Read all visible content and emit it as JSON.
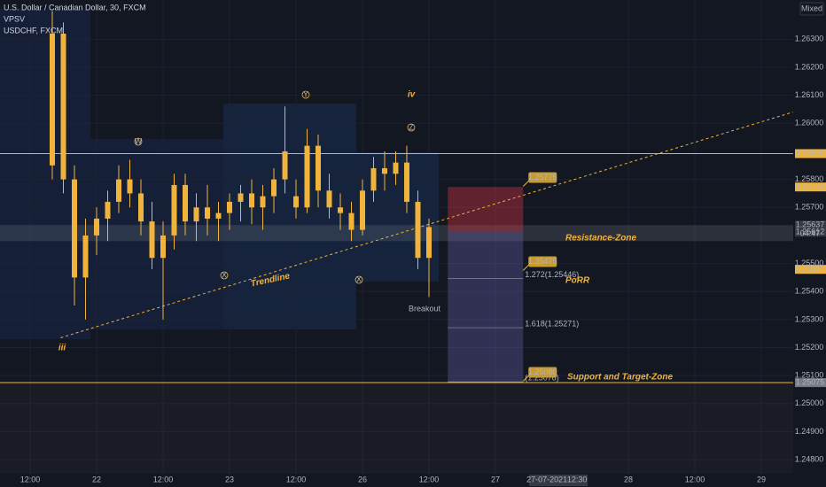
{
  "chart_data": {
    "type": "candlestick",
    "title": "U.S. Dollar / Canadian Dollar, 30, FXCM",
    "legend_lines": [
      "VPSV",
      "USDCHF, FXCM"
    ],
    "scale_mode": "Mixed",
    "color": "#f0b33c",
    "xlim": [
      -5.44,
      137.76
    ],
    "ylim": [
      1.2475,
      1.2644
    ],
    "xticks": [
      {
        "value": 0,
        "label": "12:00"
      },
      {
        "value": 12,
        "label": "22"
      },
      {
        "value": 24,
        "label": "12:00"
      },
      {
        "value": 36,
        "label": "23"
      },
      {
        "value": 48,
        "label": "12:00"
      },
      {
        "value": 60,
        "label": "26"
      },
      {
        "value": 72,
        "label": "12:00"
      },
      {
        "value": 84,
        "label": "27"
      },
      {
        "value": 108,
        "label": "28"
      },
      {
        "value": 120,
        "label": "12:00"
      },
      {
        "value": 132,
        "label": "29"
      }
    ],
    "crosshair": {
      "value": 96.5,
      "date": "27-07-2021",
      "time": "12:30"
    },
    "yticks": [
      {
        "value": 1.263,
        "label": "1.26300"
      },
      {
        "value": 1.262,
        "label": "1.26200"
      },
      {
        "value": 1.261,
        "label": "1.26100"
      },
      {
        "value": 1.26,
        "label": "1.26000"
      },
      {
        "value": 1.258,
        "label": "1.25800"
      },
      {
        "value": 1.257,
        "label": "1.25700"
      },
      {
        "value": 1.255,
        "label": "1.25500"
      },
      {
        "value": 1.254,
        "label": "1.25400"
      },
      {
        "value": 1.253,
        "label": "1.25300"
      },
      {
        "value": 1.252,
        "label": "1.25200"
      },
      {
        "value": 1.251,
        "label": "1.25100"
      },
      {
        "value": 1.25,
        "label": "1.25000"
      },
      {
        "value": 1.249,
        "label": "1.24900"
      },
      {
        "value": 1.248,
        "label": "1.24800"
      }
    ],
    "grid": true,
    "x": [
      4,
      6,
      8,
      10,
      12,
      14,
      16,
      18,
      20,
      22,
      24,
      26,
      28,
      30,
      32,
      34,
      36,
      38,
      40,
      42,
      44,
      46,
      48,
      50,
      52,
      54,
      56,
      58,
      60,
      62,
      64,
      66,
      68,
      70,
      72
    ],
    "open": [
      1.2585,
      1.2632,
      1.258,
      1.2545,
      1.256,
      1.2566,
      1.2572,
      1.258,
      1.2575,
      1.2565,
      1.2552,
      1.256,
      1.2578,
      1.2565,
      1.257,
      1.2566,
      1.2568,
      1.2572,
      1.2575,
      1.257,
      1.2574,
      1.258,
      1.2574,
      1.257,
      1.2592,
      1.2576,
      1.257,
      1.2568,
      1.2562,
      1.2576,
      1.2584,
      1.2582,
      1.2586,
      1.2572,
      1.2552
    ],
    "high": [
      1.264,
      1.2636,
      1.2585,
      1.2566,
      1.257,
      1.2576,
      1.2585,
      1.2587,
      1.258,
      1.2572,
      1.2565,
      1.2582,
      1.2582,
      1.2575,
      1.2578,
      1.2572,
      1.2575,
      1.2578,
      1.258,
      1.2578,
      1.2584,
      1.2606,
      1.258,
      1.2598,
      1.2596,
      1.2582,
      1.2575,
      1.2572,
      1.258,
      1.2588,
      1.259,
      1.259,
      1.2592,
      1.2576,
      1.2566
    ],
    "low": [
      1.258,
      1.2575,
      1.2535,
      1.253,
      1.2553,
      1.2558,
      1.2568,
      1.257,
      1.256,
      1.2548,
      1.253,
      1.2555,
      1.256,
      1.2558,
      1.256,
      1.2558,
      1.2562,
      1.2565,
      1.2564,
      1.2562,
      1.2568,
      1.2575,
      1.2566,
      1.2568,
      1.257,
      1.2566,
      1.2562,
      1.2558,
      1.256,
      1.2572,
      1.2576,
      1.2578,
      1.2568,
      1.2548,
      1.2538
    ],
    "close": [
      1.2632,
      1.258,
      1.2545,
      1.256,
      1.2566,
      1.2572,
      1.258,
      1.2575,
      1.2565,
      1.2552,
      1.256,
      1.2578,
      1.2565,
      1.257,
      1.2566,
      1.2568,
      1.2572,
      1.2575,
      1.257,
      1.2574,
      1.258,
      1.259,
      1.257,
      1.2592,
      1.2576,
      1.257,
      1.2568,
      1.2562,
      1.2576,
      1.2584,
      1.2582,
      1.2586,
      1.2572,
      1.2552,
      1.2563
    ],
    "levels": [
      {
        "value": 1.25892,
        "color": "#f0b33c"
      },
      {
        "value": 1.25075,
        "color": "#f0b33c"
      }
    ],
    "resistance_zone": [
      1.2558,
      1.25637
    ],
    "trendline": {
      "x": [
        5.5,
        137.7
      ],
      "y": [
        1.25235,
        1.2604
      ],
      "color": "#f0b33c"
    },
    "position_box": {
      "x": [
        75.4,
        89
      ],
      "stop": 1.25773,
      "entry": 1.25612,
      "target": 1.25075
    },
    "fib_levels": [
      {
        "value": 1.25446,
        "label": "1.272(1.25446)"
      },
      {
        "value": 1.25271,
        "label": "1.618(1.25271)"
      },
      {
        "value": 1.25078,
        "label": "(1.25078)"
      }
    ],
    "callouts": [
      {
        "value": 1.25775,
        "label": "1.25775"
      },
      {
        "value": 1.25475,
        "label": "1.25475"
      },
      {
        "value": 1.2508,
        "label": "1.25080"
      }
    ],
    "price_labels": [
      {
        "value": 1.25892,
        "label": "1.25892",
        "color": "#f0b33c"
      },
      {
        "value": 1.25773,
        "label": "1.25773",
        "color": "#f0b33c"
      },
      {
        "value": 1.25637,
        "label": "1.25637",
        "color": "#363a45"
      },
      {
        "value": 1.25612,
        "label": "1.25612",
        "color": "#363a45"
      },
      {
        "value": 1.25479,
        "label": "1.25479",
        "color": "#f0b33c"
      },
      {
        "value": 1.25075,
        "label": "1.25075",
        "color": "#787b86"
      }
    ],
    "countdown": "04:47",
    "annotations": {
      "trendline": "Trendline",
      "resistance": "Resistance-Zone",
      "porr": "PoRR",
      "support": "Support and Target-Zone",
      "breakout": "Breakout",
      "wave_iii": "iii",
      "wave_iv": "iv",
      "w": "W",
      "x1": "X",
      "y": "Y",
      "x2": "X",
      "z": "Z"
    }
  }
}
